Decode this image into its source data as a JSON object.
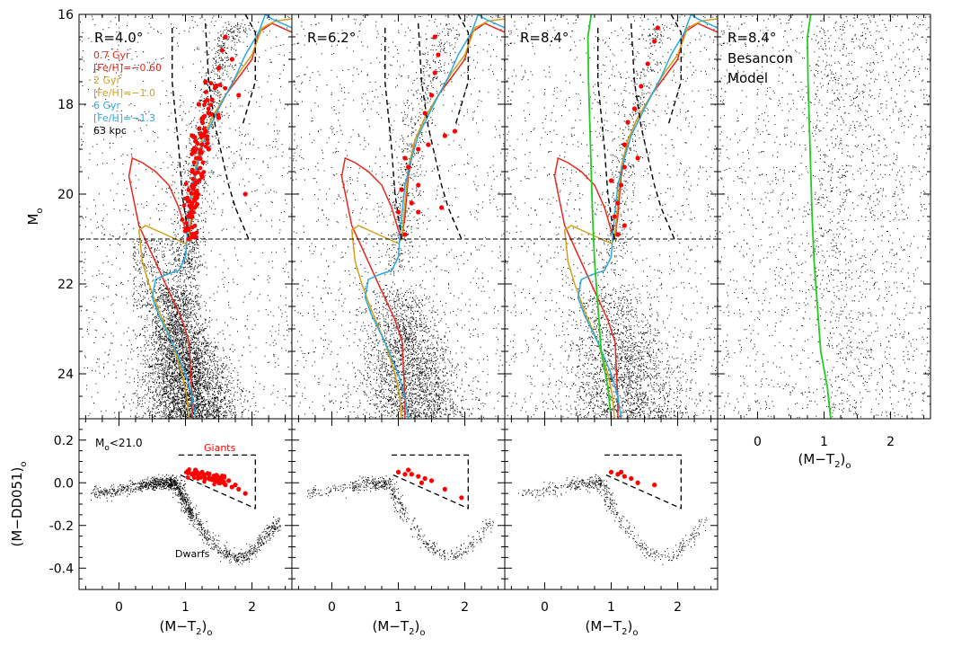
{
  "figure": {
    "ylabel_main": "M",
    "ylabel_main_sub": "o",
    "ylabel_cc": "(M−DD051)",
    "ylabel_cc_sub": "o",
    "xlabel": "(M−T",
    "xlabel_sub2": "2",
    "xlabel_close": ")",
    "xlabel_sub_o": "o"
  },
  "panels": [
    {
      "radius": "R=4.0°"
    },
    {
      "radius": "R=6.2°"
    },
    {
      "radius": "R=8.4°"
    },
    {
      "radius": "R=8.4°",
      "extra_line1": "Besancon",
      "extra_line2": "Model"
    }
  ],
  "legend": [
    {
      "label": "0.7 Gyr",
      "color": "#e8271c"
    },
    {
      "label": "[Fe/H]=−0.60",
      "color": "#e8271c"
    },
    {
      "label": "2 Gyr",
      "color": "#d4a017"
    },
    {
      "label": "[Fe/H]=−1.0",
      "color": "#d4a017"
    },
    {
      "label": "6 Gyr",
      "color": "#29a9e0"
    },
    {
      "label": "[Fe/H]=−1.3",
      "color": "#29a9e0"
    },
    {
      "label": "63 kpc",
      "color": "#000000"
    }
  ],
  "cc_annotations": {
    "cut": "M",
    "cut_sub": "o",
    "cut_rest": "<21.0",
    "giants": "Giants",
    "dwarfs": "Dwarfs"
  },
  "colors": {
    "giants": "#ff0000",
    "iso_young": "#e8271c",
    "iso_mid": "#d4a017",
    "iso_old": "#29a9e0",
    "besancon": "#22cc22",
    "dots": "#000000"
  },
  "chart_data": [
    {
      "type": "scatter",
      "name": "color-magnitude diagrams",
      "xlabel": "(M−T2)o",
      "ylabel": "Mo",
      "xlim": [
        -0.6,
        2.6
      ],
      "ylim": [
        25.0,
        16.0
      ],
      "xticks": [
        0,
        1,
        2
      ],
      "yticks": [
        16,
        18,
        20,
        22,
        24
      ],
      "faint_cut": 21.0,
      "selection_box_upper": [
        [
          1.3,
          16.2
        ],
        [
          1.35,
          17.5
        ],
        [
          1.45,
          18.5
        ],
        [
          1.65,
          19.8
        ],
        [
          1.75,
          20.3
        ],
        [
          1.95,
          21.0
        ]
      ],
      "selection_box_lower": [
        [
          0.8,
          16.3
        ],
        [
          0.8,
          17.5
        ],
        [
          0.9,
          19.0
        ],
        [
          0.95,
          20.0
        ],
        [
          1.05,
          21.0
        ]
      ],
      "selection_box_right": [
        [
          1.9,
          16.0
        ],
        [
          2.05,
          16.4
        ],
        [
          2.05,
          17.5
        ],
        [
          1.85,
          18.5
        ]
      ],
      "isochrones": [
        {
          "name": "0.7 Gyr [Fe/H]=-0.60",
          "x": [
            1.1,
            1.1,
            1.08,
            1.06,
            0.95,
            0.7,
            0.3,
            0.15,
            0.2,
            0.35,
            0.55,
            0.75,
            0.9,
            1.0,
            1.05,
            1.1,
            1.15,
            1.25,
            1.4,
            1.6,
            1.8,
            2.0,
            2.1,
            2.3,
            2.6
          ],
          "y": [
            25.0,
            24.5,
            24.0,
            23.3,
            22.8,
            22.0,
            20.7,
            19.6,
            19.2,
            19.3,
            19.5,
            19.8,
            20.3,
            20.8,
            21.0,
            20.5,
            19.6,
            18.8,
            18.3,
            17.8,
            17.4,
            17.0,
            16.4,
            16.2,
            16.4
          ]
        },
        {
          "name": "2 Gyr [Fe/H]=-1.0",
          "x": [
            1.05,
            1.02,
            0.95,
            0.8,
            0.6,
            0.45,
            0.35,
            0.3,
            0.4,
            0.55,
            0.7,
            0.85,
            1.0,
            1.05,
            1.1,
            1.15,
            1.25,
            1.4,
            1.6,
            1.8,
            2.0,
            2.15,
            2.35,
            2.6
          ],
          "y": [
            25.0,
            24.5,
            24.0,
            23.3,
            22.6,
            22.0,
            21.5,
            20.8,
            20.7,
            20.8,
            20.9,
            21.0,
            21.1,
            21.0,
            20.2,
            19.4,
            18.8,
            18.3,
            17.8,
            17.3,
            16.9,
            16.3,
            16.15,
            16.1
          ]
        },
        {
          "name": "6 Gyr [Fe/H]=-1.3",
          "x": [
            1.15,
            1.1,
            1.0,
            0.8,
            0.6,
            0.5,
            0.55,
            0.7,
            0.9,
            1.0,
            1.02,
            1.05,
            1.1,
            1.2,
            1.3,
            1.5,
            1.75,
            1.9,
            2.1,
            2.2,
            2.3,
            2.6
          ],
          "y": [
            25.0,
            24.5,
            24.0,
            23.3,
            22.7,
            22.3,
            21.9,
            21.8,
            21.7,
            21.4,
            21.0,
            20.5,
            19.8,
            19.2,
            18.7,
            18.1,
            17.4,
            16.9,
            16.4,
            16.0,
            16.1,
            16.3
          ]
        }
      ],
      "giant_points_panel1": [
        [
          1.05,
          21.0
        ],
        [
          1.1,
          20.5
        ],
        [
          1.15,
          20.0
        ],
        [
          1.1,
          19.5
        ],
        [
          1.2,
          19.2
        ],
        [
          1.25,
          18.9
        ],
        [
          1.3,
          18.6
        ],
        [
          1.35,
          18.2
        ],
        [
          1.4,
          17.9
        ],
        [
          1.45,
          17.6
        ],
        [
          1.5,
          17.2
        ],
        [
          1.55,
          16.8
        ],
        [
          1.6,
          16.5
        ],
        [
          1.7,
          17.0
        ],
        [
          1.8,
          17.8
        ],
        [
          1.2,
          18.0
        ],
        [
          1.3,
          17.5
        ],
        [
          1.1,
          18.7
        ],
        [
          1.25,
          19.6
        ],
        [
          1.35,
          19.0
        ],
        [
          1.5,
          18.3
        ],
        [
          1.9,
          20.0
        ]
      ],
      "giant_points_panel2": [
        [
          1.1,
          20.9
        ],
        [
          1.0,
          20.4
        ],
        [
          1.2,
          20.2
        ],
        [
          1.05,
          19.9
        ],
        [
          1.3,
          19.8
        ],
        [
          1.15,
          19.4
        ],
        [
          1.45,
          18.9
        ],
        [
          1.4,
          18.2
        ],
        [
          1.5,
          17.8
        ],
        [
          1.6,
          16.9
        ],
        [
          1.55,
          17.3
        ],
        [
          1.3,
          19.0
        ],
        [
          1.7,
          18.7
        ],
        [
          1.85,
          18.6
        ],
        [
          1.65,
          20.3
        ],
        [
          1.1,
          19.2
        ],
        [
          1.3,
          20.4
        ],
        [
          1.55,
          16.5
        ]
      ],
      "giant_points_panel3": [
        [
          1.1,
          20.9
        ],
        [
          1.05,
          20.5
        ],
        [
          1.1,
          20.2
        ],
        [
          1.15,
          19.8
        ],
        [
          1.2,
          19.4
        ],
        [
          1.2,
          18.9
        ],
        [
          1.25,
          18.4
        ],
        [
          1.35,
          18.1
        ],
        [
          1.45,
          17.6
        ],
        [
          1.55,
          17.1
        ],
        [
          1.65,
          16.6
        ],
        [
          1.7,
          16.3
        ],
        [
          1.4,
          19.2
        ],
        [
          1.0,
          19.7
        ],
        [
          1.2,
          20.7
        ]
      ],
      "besancon_ridge": {
        "x": [
          1.1,
          1.05,
          0.95,
          0.9,
          0.85,
          0.82,
          0.8,
          0.78,
          0.76,
          0.75,
          0.8
        ],
        "y": [
          25.0,
          24.3,
          23.5,
          22.5,
          21.5,
          20.5,
          19.5,
          18.5,
          17.5,
          16.5,
          16.0
        ]
      }
    },
    {
      "type": "scatter",
      "name": "color-color diagrams",
      "xlabel": "(M−T2)o",
      "ylabel": "(M−DD051)o",
      "xlim": [
        -0.6,
        2.6
      ],
      "ylim": [
        -0.5,
        0.3
      ],
      "xticks": [
        0,
        1,
        2
      ],
      "yticks": [
        -0.4,
        -0.2,
        0.0,
        0.2
      ],
      "giant_box": [
        [
          0.9,
          0.13
        ],
        [
          2.05,
          0.13
        ],
        [
          2.05,
          -0.12
        ],
        [
          0.9,
          0.04
        ]
      ],
      "dwarf_sequence": {
        "x": [
          -0.4,
          -0.1,
          0.2,
          0.5,
          0.7,
          0.85,
          1.0,
          1.2,
          1.4,
          1.6,
          1.8,
          2.0,
          2.2,
          2.4
        ],
        "y": [
          -0.05,
          -0.04,
          -0.02,
          0.0,
          0.0,
          0.0,
          -0.1,
          -0.2,
          -0.28,
          -0.33,
          -0.35,
          -0.32,
          -0.25,
          -0.18
        ]
      },
      "giants_panel1": [
        [
          1.05,
          0.05
        ],
        [
          1.1,
          0.04
        ],
        [
          1.2,
          0.03
        ],
        [
          1.3,
          0.02
        ],
        [
          1.4,
          0.02
        ],
        [
          1.5,
          0.0
        ],
        [
          1.6,
          -0.01
        ],
        [
          1.7,
          -0.02
        ],
        [
          1.8,
          -0.03
        ],
        [
          1.9,
          -0.05
        ],
        [
          1.15,
          0.06
        ],
        [
          1.25,
          0.05
        ],
        [
          1.35,
          0.04
        ],
        [
          1.45,
          0.03
        ],
        [
          1.55,
          0.02
        ],
        [
          1.65,
          0.01
        ],
        [
          1.75,
          -0.01
        ]
      ],
      "giants_panel2": [
        [
          1.0,
          0.05
        ],
        [
          1.1,
          0.04
        ],
        [
          1.2,
          0.04
        ],
        [
          1.3,
          0.03
        ],
        [
          1.4,
          0.02
        ],
        [
          1.5,
          0.01
        ],
        [
          1.7,
          -0.03
        ],
        [
          1.95,
          -0.07
        ],
        [
          1.15,
          0.06
        ],
        [
          1.35,
          0.0
        ]
      ],
      "giants_panel3": [
        [
          1.0,
          0.05
        ],
        [
          1.1,
          0.04
        ],
        [
          1.2,
          0.03
        ],
        [
          1.3,
          0.02
        ],
        [
          1.4,
          0.0
        ],
        [
          1.65,
          -0.01
        ],
        [
          1.15,
          0.05
        ]
      ]
    }
  ]
}
